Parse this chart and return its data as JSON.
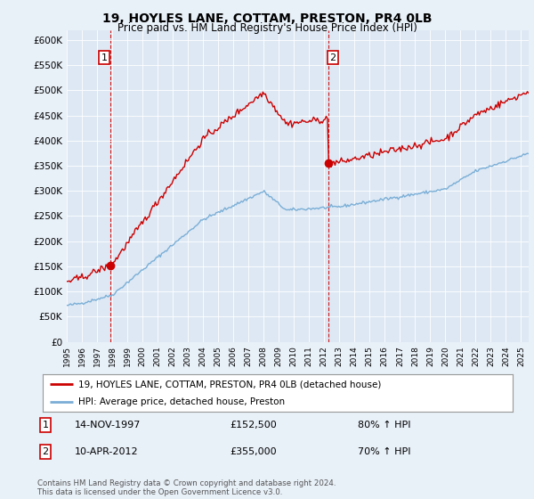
{
  "title": "19, HOYLES LANE, COTTAM, PRESTON, PR4 0LB",
  "subtitle": "Price paid vs. HM Land Registry's House Price Index (HPI)",
  "background_color": "#e8f0f8",
  "plot_bg_color": "#dde8f4",
  "ylim": [
    0,
    620000
  ],
  "yticks": [
    0,
    50000,
    100000,
    150000,
    200000,
    250000,
    300000,
    350000,
    400000,
    450000,
    500000,
    550000,
    600000
  ],
  "ytick_labels": [
    "£0",
    "£50K",
    "£100K",
    "£150K",
    "£200K",
    "£250K",
    "£300K",
    "£350K",
    "£400K",
    "£450K",
    "£500K",
    "£550K",
    "£600K"
  ],
  "sale1_date_x": 1997.87,
  "sale1_price": 152500,
  "sale1_label": "1",
  "sale1_date_str": "14-NOV-1997",
  "sale1_price_str": "£152,500",
  "sale1_note": "80% ↑ HPI",
  "sale2_date_x": 2012.27,
  "sale2_price": 355000,
  "sale2_label": "2",
  "sale2_date_str": "10-APR-2012",
  "sale2_price_str": "£355,000",
  "sale2_note": "70% ↑ HPI",
  "legend_line1": "19, HOYLES LANE, COTTAM, PRESTON, PR4 0LB (detached house)",
  "legend_line2": "HPI: Average price, detached house, Preston",
  "footer": "Contains HM Land Registry data © Crown copyright and database right 2024.\nThis data is licensed under the Open Government Licence v3.0.",
  "red_color": "#cc0000",
  "blue_color": "#7aaed6",
  "dashed_color": "#cc0000",
  "xlim_start": 1995,
  "xlim_end": 2025.5
}
